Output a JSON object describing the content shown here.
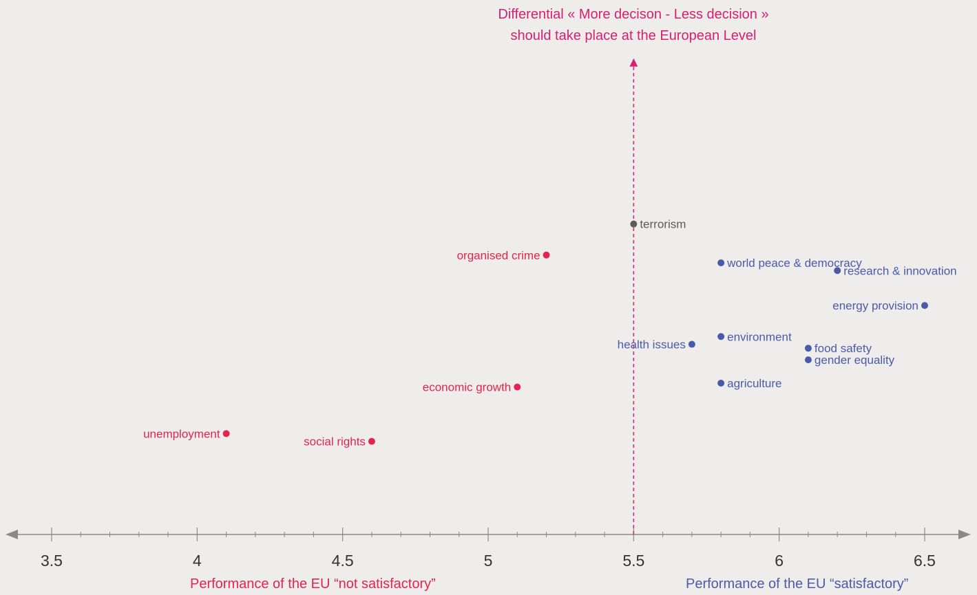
{
  "chart_data": {
    "type": "scatter",
    "title_lines": [
      "Differential « More decison - Less decision »",
      "should take place at the European Level"
    ],
    "xlabel_left": "Performance of the EU “not satisfactory”",
    "xlabel_right": "Performance of the EU “satisfactory”",
    "xlim": [
      3.5,
      6.5
    ],
    "xticks": [
      {
        "value": 3.5,
        "label": "3.5"
      },
      {
        "value": 4,
        "label": "4"
      },
      {
        "value": 4.5,
        "label": "4.5"
      },
      {
        "value": 5,
        "label": "5"
      },
      {
        "value": 5.5,
        "label": "5.5"
      },
      {
        "value": 6,
        "label": "6"
      },
      {
        "value": 6.5,
        "label": "6.5"
      }
    ],
    "minor_tick_step": 0.1,
    "ylim": [
      0,
      6
    ],
    "reference_line_x": 5.5,
    "colors": {
      "not_satisfactory": "#e2244f",
      "neutral": "#5b5b5b",
      "satisfactory": "#4b5aa8",
      "reference": "#d6206f",
      "axis": "#8a8a8a"
    },
    "points": [
      {
        "label": "terrorism",
        "x": 5.5,
        "y": 4.0,
        "group": "neutral",
        "label_side": "right"
      },
      {
        "label": "organised crime",
        "x": 5.2,
        "y": 3.6,
        "group": "not_satisfactory",
        "label_side": "left"
      },
      {
        "label": "world peace & democracy",
        "x": 5.8,
        "y": 3.5,
        "group": "satisfactory",
        "label_side": "right"
      },
      {
        "label": "research & innovation",
        "x": 6.2,
        "y": 3.4,
        "group": "satisfactory",
        "label_side": "right"
      },
      {
        "label": "energy provision",
        "x": 6.5,
        "y": 2.95,
        "group": "satisfactory",
        "label_side": "left"
      },
      {
        "label": "environment",
        "x": 5.8,
        "y": 2.55,
        "group": "satisfactory",
        "label_side": "right"
      },
      {
        "label": "health issues",
        "x": 5.7,
        "y": 2.45,
        "group": "satisfactory",
        "label_side": "left"
      },
      {
        "label": "food safety",
        "x": 6.1,
        "y": 2.4,
        "group": "satisfactory",
        "label_side": "right"
      },
      {
        "label": "gender equality",
        "x": 6.1,
        "y": 2.25,
        "group": "satisfactory",
        "label_side": "right"
      },
      {
        "label": "agriculture",
        "x": 5.8,
        "y": 1.95,
        "group": "satisfactory",
        "label_side": "right"
      },
      {
        "label": "economic growth",
        "x": 5.1,
        "y": 1.9,
        "group": "not_satisfactory",
        "label_side": "left"
      },
      {
        "label": "unemployment",
        "x": 4.1,
        "y": 1.3,
        "group": "not_satisfactory",
        "label_side": "left"
      },
      {
        "label": "social rights",
        "x": 4.6,
        "y": 1.2,
        "group": "not_satisfactory",
        "label_side": "left"
      }
    ]
  }
}
